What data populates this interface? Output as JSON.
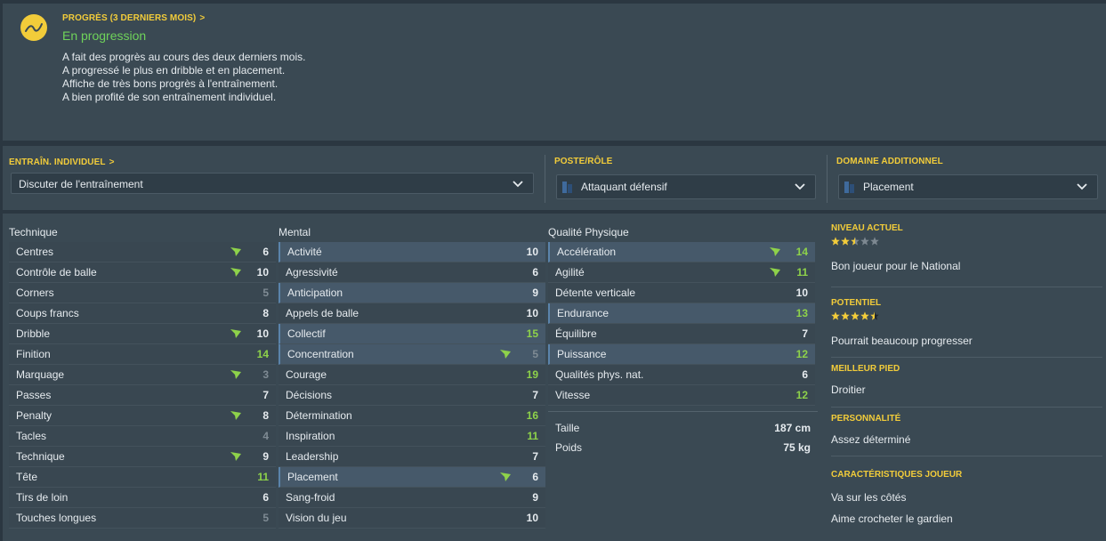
{
  "progress": {
    "title": "PROGRÈS (3 DERNIERS MOIS)",
    "title_chevron": ">",
    "status": "En progression",
    "lines": [
      "A fait des progrès au cours des deux derniers mois.",
      "A progressé le plus en dribble et en placement.",
      "Affiche de très bons progrès à l'entraînement.",
      "A bien profité de son entraînement individuel."
    ]
  },
  "training": {
    "individual_title": "ENTRAÎN. INDIVIDUEL",
    "individual_chevron": ">",
    "individual_value": "Discuter de l'entraînement",
    "role_title": "POSTE/RÔLE",
    "role_value": "Attaquant défensif",
    "extra_title": "DOMAINE ADDITIONNEL",
    "extra_value": "Placement"
  },
  "technique": {
    "header": "Technique",
    "rows": [
      {
        "name": "Centres",
        "value": "6",
        "tone": "mid",
        "arrow": true,
        "hl": false
      },
      {
        "name": "Contrôle de balle",
        "value": "10",
        "tone": "mid",
        "arrow": true,
        "hl": false
      },
      {
        "name": "Corners",
        "value": "5",
        "tone": "lo",
        "arrow": false,
        "hl": false
      },
      {
        "name": "Coups francs",
        "value": "8",
        "tone": "mid",
        "arrow": false,
        "hl": false
      },
      {
        "name": "Dribble",
        "value": "10",
        "tone": "mid",
        "arrow": true,
        "hl": false
      },
      {
        "name": "Finition",
        "value": "14",
        "tone": "hi",
        "arrow": false,
        "hl": false
      },
      {
        "name": "Marquage",
        "value": "3",
        "tone": "lo",
        "arrow": true,
        "hl": false
      },
      {
        "name": "Passes",
        "value": "7",
        "tone": "mid",
        "arrow": false,
        "hl": false
      },
      {
        "name": "Penalty",
        "value": "8",
        "tone": "mid",
        "arrow": true,
        "hl": false
      },
      {
        "name": "Tacles",
        "value": "4",
        "tone": "lo",
        "arrow": false,
        "hl": false
      },
      {
        "name": "Technique",
        "value": "9",
        "tone": "mid",
        "arrow": true,
        "hl": false
      },
      {
        "name": "Tête",
        "value": "11",
        "tone": "hi",
        "arrow": false,
        "hl": false
      },
      {
        "name": "Tirs de loin",
        "value": "6",
        "tone": "mid",
        "arrow": false,
        "hl": false
      },
      {
        "name": "Touches longues",
        "value": "5",
        "tone": "lo",
        "arrow": false,
        "hl": false
      }
    ]
  },
  "mental": {
    "header": "Mental",
    "rows": [
      {
        "name": "Activité",
        "value": "10",
        "tone": "mid",
        "arrow": false,
        "hl": true
      },
      {
        "name": "Agressivité",
        "value": "6",
        "tone": "mid",
        "arrow": false,
        "hl": false
      },
      {
        "name": "Anticipation",
        "value": "9",
        "tone": "mid",
        "arrow": false,
        "hl": true
      },
      {
        "name": "Appels de balle",
        "value": "10",
        "tone": "mid",
        "arrow": false,
        "hl": false
      },
      {
        "name": "Collectif",
        "value": "15",
        "tone": "hi",
        "arrow": false,
        "hl": true
      },
      {
        "name": "Concentration",
        "value": "5",
        "tone": "lo",
        "arrow": true,
        "hl": true
      },
      {
        "name": "Courage",
        "value": "19",
        "tone": "hi",
        "arrow": false,
        "hl": false
      },
      {
        "name": "Décisions",
        "value": "7",
        "tone": "mid",
        "arrow": false,
        "hl": false
      },
      {
        "name": "Détermination",
        "value": "16",
        "tone": "hi",
        "arrow": false,
        "hl": false
      },
      {
        "name": "Inspiration",
        "value": "11",
        "tone": "hi",
        "arrow": false,
        "hl": false
      },
      {
        "name": "Leadership",
        "value": "7",
        "tone": "mid",
        "arrow": false,
        "hl": false
      },
      {
        "name": "Placement",
        "value": "6",
        "tone": "mid",
        "arrow": true,
        "hl": true
      },
      {
        "name": "Sang-froid",
        "value": "9",
        "tone": "mid",
        "arrow": false,
        "hl": false
      },
      {
        "name": "Vision du jeu",
        "value": "10",
        "tone": "mid",
        "arrow": false,
        "hl": false
      }
    ]
  },
  "physical": {
    "header": "Qualité Physique",
    "rows": [
      {
        "name": "Accélération",
        "value": "14",
        "tone": "hi",
        "arrow": true,
        "hl": true
      },
      {
        "name": "Agilité",
        "value": "11",
        "tone": "hi",
        "arrow": true,
        "hl": false
      },
      {
        "name": "Détente verticale",
        "value": "10",
        "tone": "mid",
        "arrow": false,
        "hl": false
      },
      {
        "name": "Endurance",
        "value": "13",
        "tone": "hi",
        "arrow": false,
        "hl": true
      },
      {
        "name": "Équilibre",
        "value": "7",
        "tone": "mid",
        "arrow": false,
        "hl": false
      },
      {
        "name": "Puissance",
        "value": "12",
        "tone": "hi",
        "arrow": false,
        "hl": true
      },
      {
        "name": "Qualités phys. nat.",
        "value": "6",
        "tone": "mid",
        "arrow": false,
        "hl": false
      },
      {
        "name": "Vitesse",
        "value": "12",
        "tone": "hi",
        "arrow": false,
        "hl": false
      }
    ],
    "height_label": "Taille",
    "height_value": "187 cm",
    "weight_label": "Poids",
    "weight_value": "75 kg"
  },
  "info": {
    "current_label": "NIVEAU ACTUEL",
    "current_stars": 2.5,
    "current_text": "Bon joueur pour le National",
    "potential_label": "POTENTIEL",
    "potential_stars": 4.5,
    "potential_text": "Pourrait beaucoup progresser",
    "foot_label": "MEILLEUR PIED",
    "foot_text": "Droitier",
    "personality_label": "PERSONNALITÉ",
    "personality_text": "Assez déterminé",
    "traits_label": "CARACTÉRISTIQUES JOUEUR",
    "traits": [
      "Va sur les côtés",
      "Aime crocheter le gardien"
    ]
  },
  "colors": {
    "accent": "#f2cc3a",
    "good": "#8ed24a",
    "status_green": "#6fd35a",
    "highlight_row": "#46596a"
  }
}
